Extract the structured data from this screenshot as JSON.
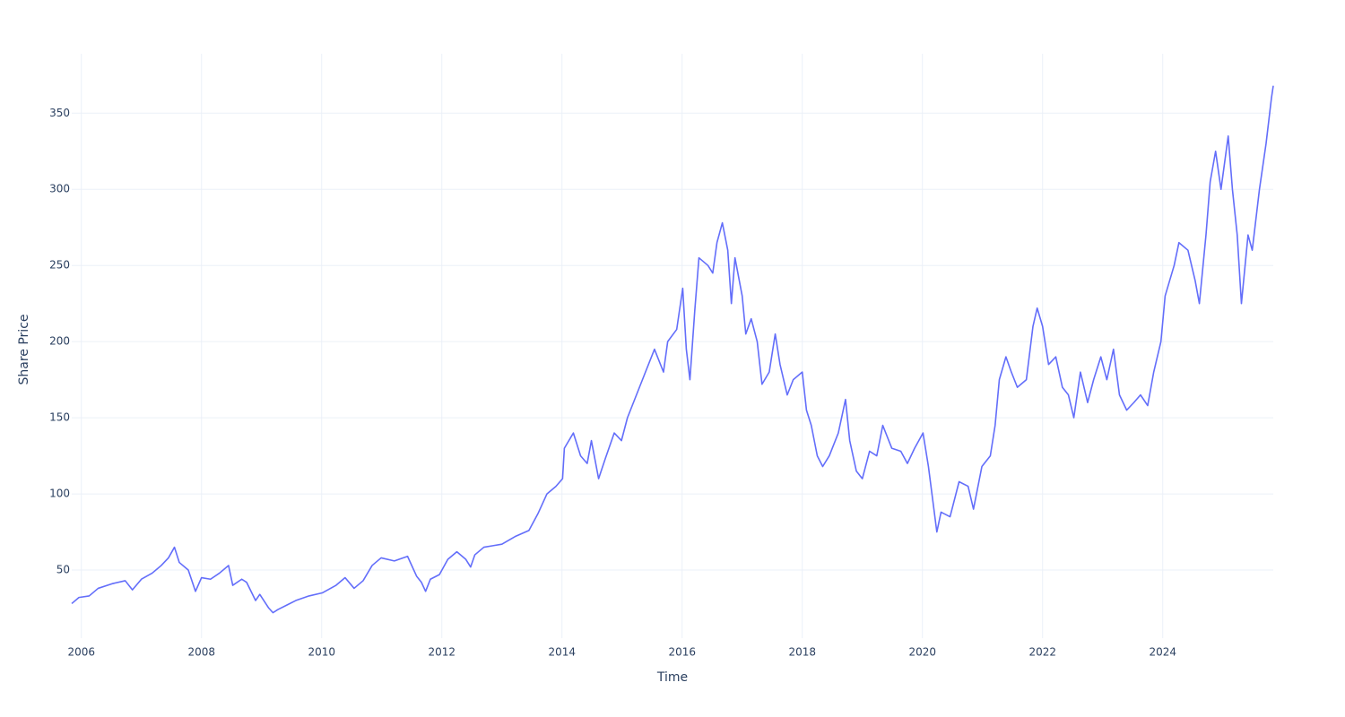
{
  "chart_data": {
    "type": "line",
    "x_label": "Time",
    "y_label": "Share Price",
    "x": [
      2005.84,
      2005.96,
      2006.13,
      2006.28,
      2006.51,
      2006.73,
      2006.85,
      2007.0,
      2007.18,
      2007.33,
      2007.45,
      2007.55,
      2007.63,
      2007.78,
      2007.9,
      2008.0,
      2008.15,
      2008.3,
      2008.45,
      2008.52,
      2008.67,
      2008.75,
      2008.9,
      2008.97,
      2009.12,
      2009.19,
      2009.27,
      2009.42,
      2009.57,
      2009.79,
      2010.01,
      2010.24,
      2010.39,
      2010.54,
      2010.69,
      2010.84,
      2010.99,
      2011.21,
      2011.43,
      2011.58,
      2011.66,
      2011.73,
      2011.81,
      2011.96,
      2012.1,
      2012.25,
      2012.4,
      2012.48,
      2012.55,
      2012.7,
      2012.85,
      2013.0,
      2013.22,
      2013.45,
      2013.6,
      2013.75,
      2013.9,
      2014.01,
      2014.04,
      2014.19,
      2014.31,
      2014.42,
      2014.49,
      2014.61,
      2014.72,
      2014.87,
      2014.99,
      2015.09,
      2015.24,
      2015.39,
      2015.54,
      2015.69,
      2015.76,
      2015.91,
      2016.01,
      2016.07,
      2016.13,
      2016.21,
      2016.28,
      2016.43,
      2016.51,
      2016.58,
      2016.67,
      2016.76,
      2016.82,
      2016.88,
      2017.0,
      2017.06,
      2017.15,
      2017.25,
      2017.33,
      2017.45,
      2017.55,
      2017.63,
      2017.75,
      2017.85,
      2018.0,
      2018.07,
      2018.15,
      2018.25,
      2018.34,
      2018.45,
      2018.6,
      2018.72,
      2018.79,
      2018.9,
      2019.0,
      2019.12,
      2019.24,
      2019.34,
      2019.49,
      2019.64,
      2019.75,
      2019.87,
      2020.01,
      2020.1,
      2020.24,
      2020.31,
      2020.46,
      2020.61,
      2020.76,
      2020.85,
      2020.99,
      2021.13,
      2021.21,
      2021.28,
      2021.39,
      2021.48,
      2021.58,
      2021.73,
      2021.84,
      2021.91,
      2022.0,
      2022.1,
      2022.22,
      2022.33,
      2022.43,
      2022.52,
      2022.63,
      2022.75,
      2022.85,
      2022.97,
      2023.07,
      2023.18,
      2023.28,
      2023.4,
      2023.52,
      2023.63,
      2023.75,
      2023.85,
      2023.97,
      2024.04,
      2024.19,
      2024.27,
      2024.42,
      2024.54,
      2024.61,
      2024.72,
      2024.79,
      2024.88,
      2024.97,
      2025.09,
      2025.16,
      2025.24,
      2025.31,
      2025.42,
      2025.49,
      2025.61,
      2025.72,
      2025.81,
      2025.84
    ],
    "values": [
      28,
      32,
      33,
      38,
      41,
      43,
      37,
      44,
      48,
      53,
      58,
      65,
      55,
      50,
      36,
      45,
      44,
      48,
      53,
      40,
      44,
      42,
      30,
      34,
      25,
      22,
      24,
      27,
      30,
      33,
      35,
      40,
      45,
      38,
      43,
      53,
      58,
      56,
      59,
      46,
      42,
      36,
      44,
      47,
      57,
      62,
      57,
      52,
      60,
      65,
      66,
      67,
      72,
      76,
      87,
      100,
      105,
      110,
      130,
      140,
      125,
      120,
      135,
      110,
      123,
      140,
      135,
      150,
      165,
      180,
      195,
      180,
      200,
      208,
      235,
      195,
      175,
      220,
      255,
      250,
      245,
      265,
      278,
      260,
      225,
      255,
      230,
      205,
      215,
      200,
      172,
      180,
      205,
      185,
      165,
      175,
      180,
      155,
      145,
      125,
      118,
      125,
      140,
      162,
      135,
      115,
      110,
      128,
      125,
      145,
      130,
      128,
      120,
      130,
      140,
      118,
      75,
      88,
      85,
      108,
      105,
      90,
      118,
      125,
      145,
      175,
      190,
      180,
      170,
      175,
      210,
      222,
      210,
      185,
      190,
      170,
      165,
      150,
      180,
      160,
      175,
      190,
      175,
      195,
      165,
      155,
      160,
      165,
      158,
      180,
      200,
      230,
      250,
      265,
      260,
      240,
      225,
      270,
      305,
      325,
      300,
      335,
      300,
      270,
      225,
      270,
      260,
      300,
      330,
      360,
      368
    ],
    "color": "#636efa",
    "xlim": [
      2005.84,
      2025.84
    ],
    "xticks": [
      2006,
      2008,
      2010,
      2012,
      2014,
      2016,
      2018,
      2020,
      2022,
      2024
    ],
    "ylim": [
      5.3,
      389
    ],
    "yticks": [
      50,
      100,
      150,
      200,
      250,
      300,
      350
    ],
    "grid": true
  }
}
